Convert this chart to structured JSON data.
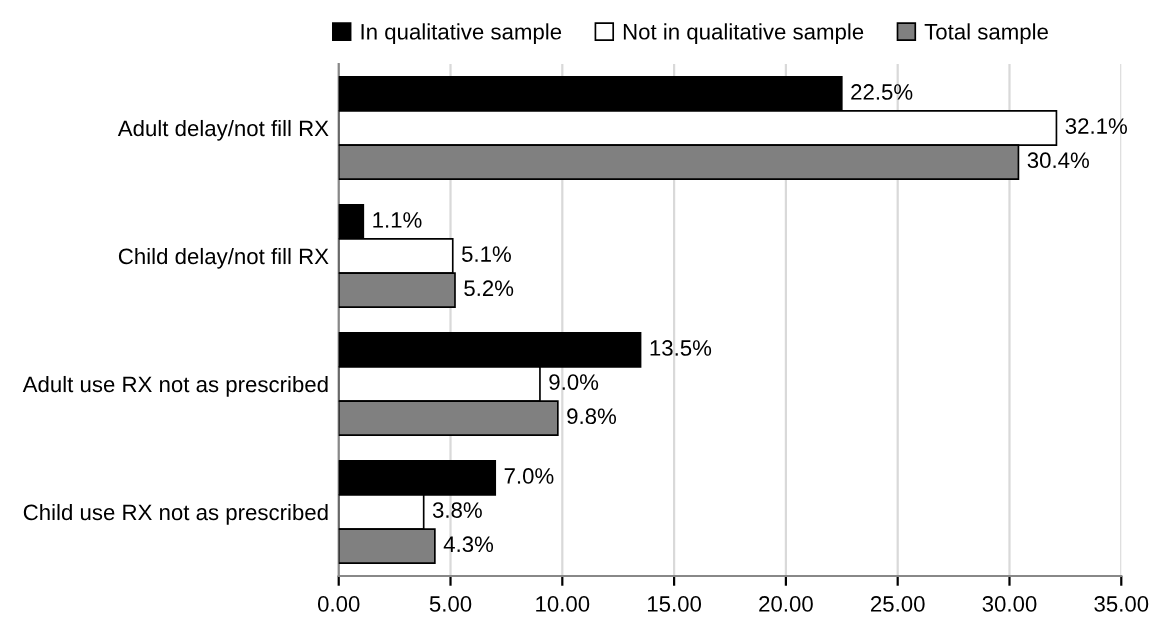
{
  "chart_data": {
    "type": "bar",
    "orientation": "horizontal",
    "categories": [
      "Adult delay/not fill RX",
      "Child delay/not fill RX",
      "Adult use RX not as prescribed",
      "Child use RX not as prescribed"
    ],
    "series": [
      {
        "name": "In qualitative sample",
        "color": "#000000",
        "values": [
          22.5,
          1.1,
          13.5,
          7.0
        ],
        "value_labels": [
          "22.5%",
          "1.1%",
          "13.5%",
          "7.0%"
        ]
      },
      {
        "name": "Not in qualitative sample",
        "color": "#ffffff",
        "values": [
          32.1,
          5.1,
          9.0,
          3.8
        ],
        "value_labels": [
          "32.1%",
          "5.1%",
          "9.0%",
          "3.8%"
        ]
      },
      {
        "name": "Total sample",
        "color": "#808080",
        "values": [
          30.4,
          5.2,
          9.8,
          4.3
        ],
        "value_labels": [
          "30.4%",
          "5.2%",
          "9.8%",
          "4.3%"
        ]
      }
    ],
    "xlim": [
      0,
      35
    ],
    "xticks": [
      {
        "value": 0,
        "label": "0.00"
      },
      {
        "value": 5,
        "label": "5.00"
      },
      {
        "value": 10,
        "label": "10.00"
      },
      {
        "value": 15,
        "label": "15.00"
      },
      {
        "value": 20,
        "label": "20.00"
      },
      {
        "value": 25,
        "label": "25.00"
      },
      {
        "value": 30,
        "label": "30.00"
      },
      {
        "value": 35,
        "label": "35.00"
      }
    ],
    "grid": "x",
    "legend": "top"
  }
}
